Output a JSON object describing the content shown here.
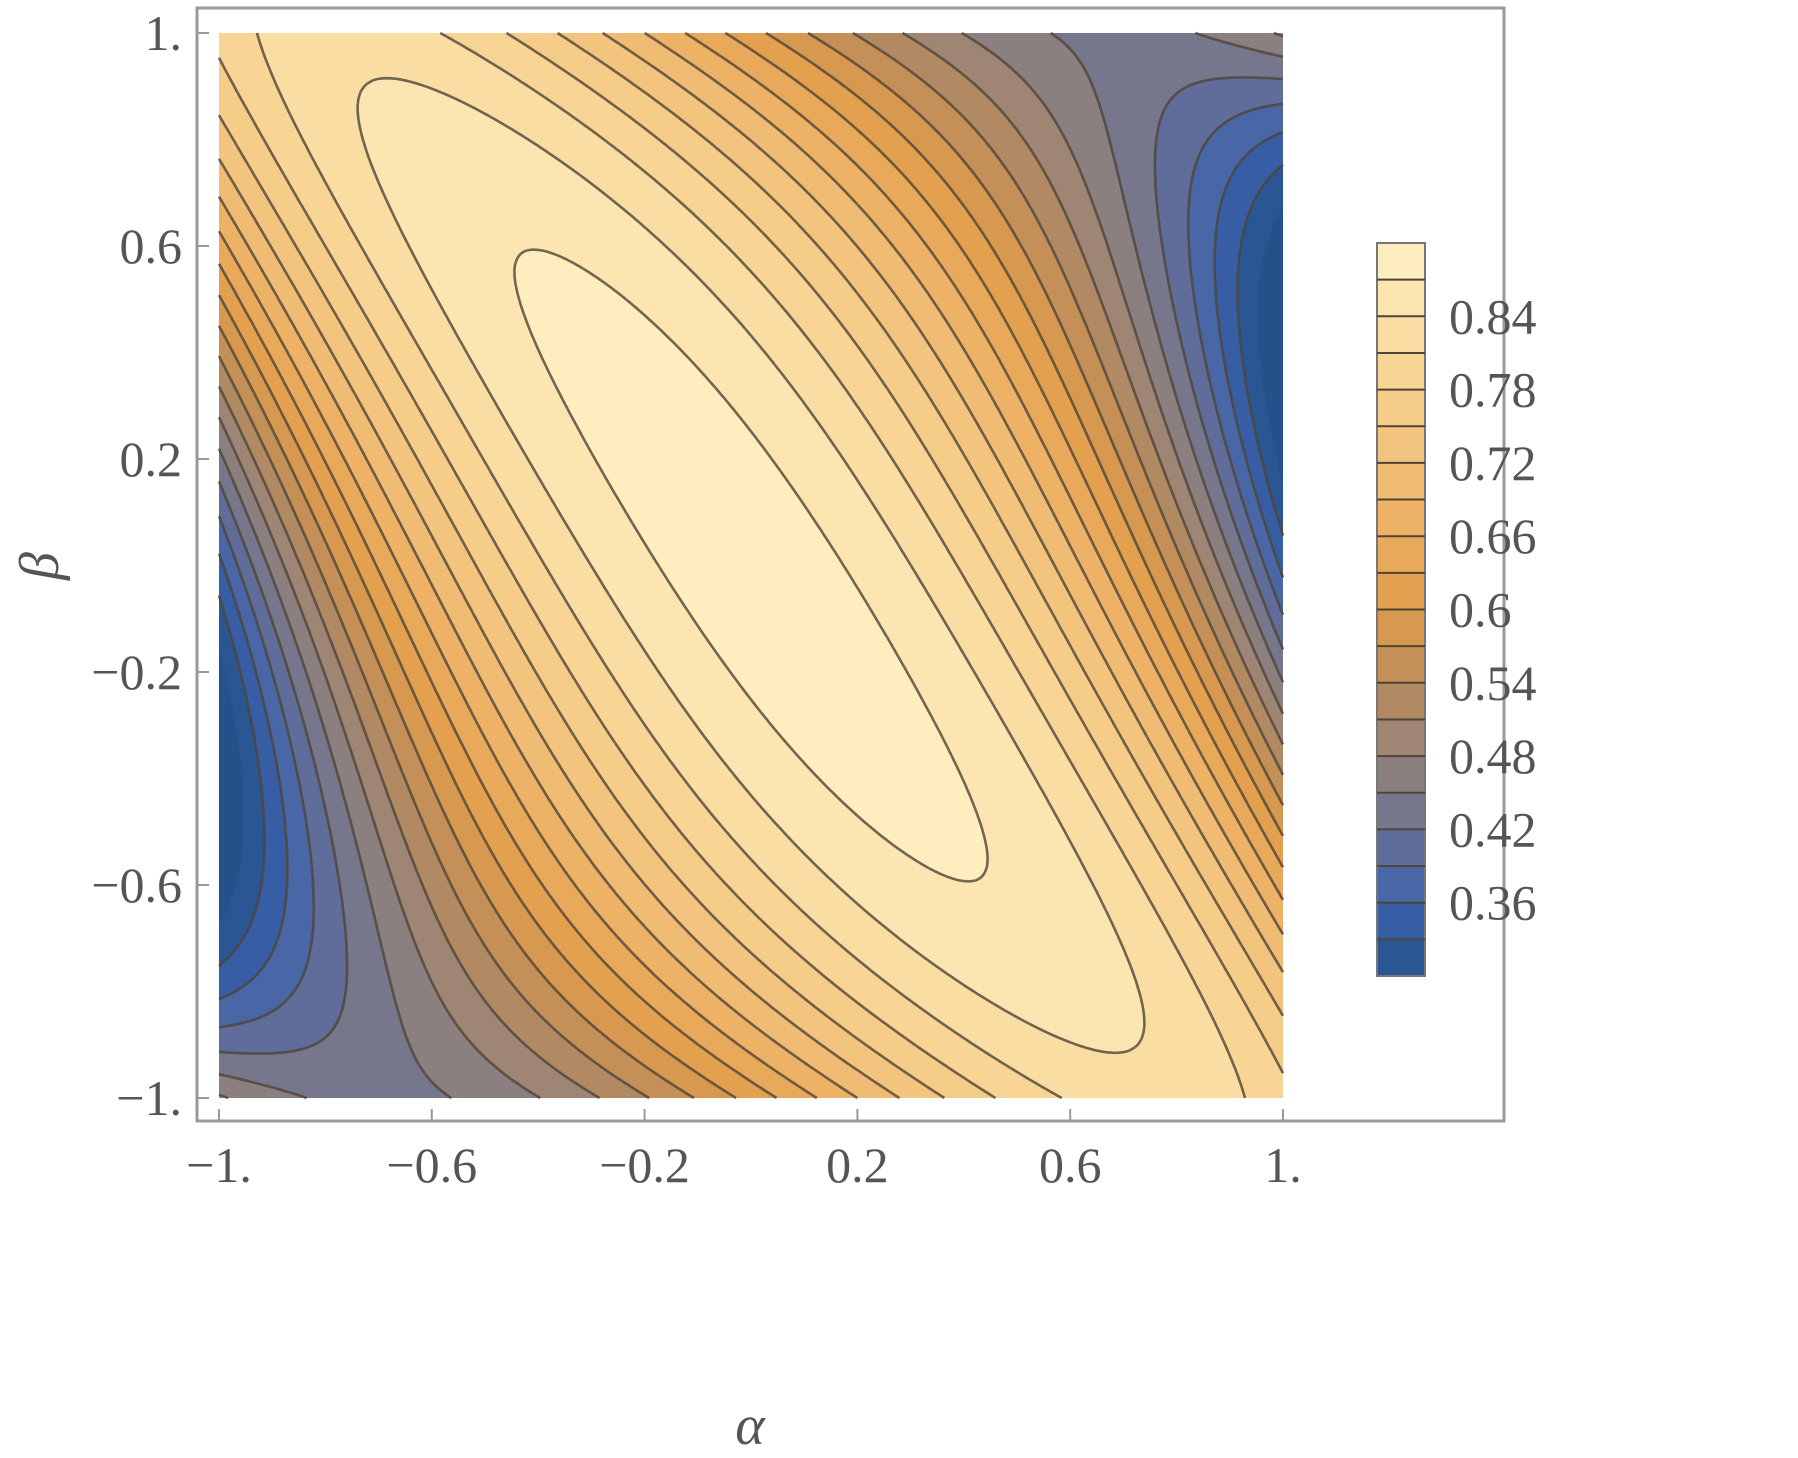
{
  "chart_data": {
    "type": "contour",
    "xlabel": "α",
    "ylabel": "β",
    "xlim": [
      -1,
      1
    ],
    "ylim": [
      -1,
      1
    ],
    "x_ticks": [
      {
        "value": -1,
        "label": "−1."
      },
      {
        "value": -0.6,
        "label": "−0.6"
      },
      {
        "value": -0.2,
        "label": "−0.2"
      },
      {
        "value": 0.2,
        "label": "0.2"
      },
      {
        "value": 0.6,
        "label": "0.6"
      },
      {
        "value": 1,
        "label": "1."
      }
    ],
    "y_ticks": [
      {
        "value": -1,
        "label": "−1."
      },
      {
        "value": -0.6,
        "label": "−0.6"
      },
      {
        "value": -0.2,
        "label": "−0.2"
      },
      {
        "value": 0.2,
        "label": "0.2"
      },
      {
        "value": 0.6,
        "label": "0.6"
      },
      {
        "value": 1,
        "label": "1."
      }
    ],
    "value_range": [
      0.3,
      0.9
    ],
    "contour_step": 0.03,
    "legend": {
      "placement": "right",
      "ticks": [
        {
          "value": 0.84,
          "label": "0.84"
        },
        {
          "value": 0.78,
          "label": "0.78"
        },
        {
          "value": 0.72,
          "label": "0.72"
        },
        {
          "value": 0.66,
          "label": "0.66"
        },
        {
          "value": 0.6,
          "label": "0.6"
        },
        {
          "value": 0.54,
          "label": "0.54"
        },
        {
          "value": 0.48,
          "label": "0.48"
        },
        {
          "value": 0.42,
          "label": "0.42"
        },
        {
          "value": 0.36,
          "label": "0.36"
        }
      ]
    },
    "colormap": [
      {
        "v": 0.3,
        "color": "#23528a"
      },
      {
        "v": 0.36,
        "color": "#3e62ad"
      },
      {
        "v": 0.42,
        "color": "#6b7193"
      },
      {
        "v": 0.48,
        "color": "#95837a"
      },
      {
        "v": 0.54,
        "color": "#bb8c5d"
      },
      {
        "v": 0.6,
        "color": "#e09c4a"
      },
      {
        "v": 0.66,
        "color": "#ebad5f"
      },
      {
        "v": 0.72,
        "color": "#f2c078"
      },
      {
        "v": 0.78,
        "color": "#f7d08f"
      },
      {
        "v": 0.84,
        "color": "#fbe1a8"
      },
      {
        "v": 0.9,
        "color": "#fff1c6"
      }
    ],
    "line_color": "#4f4537",
    "frame_color": "#999999"
  }
}
